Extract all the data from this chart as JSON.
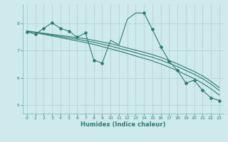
{
  "xlabel": "Humidex (Indice chaleur)",
  "bg_color": "#ceeaed",
  "grid_color": "#aed0d4",
  "line_color": "#2e7d72",
  "xlim": [
    -0.5,
    23.5
  ],
  "ylim": [
    4.7,
    8.7
  ],
  "xticks": [
    0,
    1,
    2,
    3,
    4,
    5,
    6,
    7,
    8,
    9,
    10,
    11,
    12,
    13,
    14,
    15,
    16,
    17,
    18,
    19,
    20,
    21,
    22,
    23
  ],
  "yticks": [
    5,
    6,
    7,
    8
  ],
  "series1_x": [
    0,
    1,
    2,
    3,
    4,
    5,
    6,
    7,
    8,
    9,
    10,
    11,
    12,
    13,
    14,
    15,
    16,
    17,
    18,
    19,
    20,
    21,
    22,
    23
  ],
  "series1_y": [
    7.7,
    7.6,
    7.82,
    8.02,
    7.82,
    7.72,
    7.5,
    7.65,
    6.65,
    6.55,
    7.38,
    7.22,
    8.15,
    8.38,
    8.38,
    7.78,
    7.15,
    6.62,
    6.28,
    5.82,
    5.92,
    5.55,
    5.28,
    5.18
  ],
  "series1_markers_x": [
    0,
    1,
    2,
    3,
    4,
    5,
    6,
    7,
    8,
    9,
    14,
    15,
    16,
    17,
    18,
    19,
    20,
    21,
    22,
    23
  ],
  "series1_markers_y": [
    7.7,
    7.6,
    7.82,
    8.02,
    7.82,
    7.72,
    7.5,
    7.65,
    6.65,
    6.55,
    8.38,
    7.78,
    7.15,
    6.62,
    6.28,
    5.82,
    5.92,
    5.55,
    5.28,
    5.18
  ],
  "series2_x": [
    0,
    1,
    2,
    3,
    4,
    5,
    6,
    7,
    8,
    9,
    10,
    11,
    12,
    13,
    14,
    15,
    16,
    17,
    18,
    19,
    20,
    21,
    22,
    23
  ],
  "series2_y": [
    7.72,
    7.68,
    7.64,
    7.6,
    7.56,
    7.52,
    7.48,
    7.44,
    7.38,
    7.32,
    7.26,
    7.18,
    7.1,
    7.02,
    6.94,
    6.86,
    6.76,
    6.64,
    6.52,
    6.38,
    6.24,
    6.08,
    5.88,
    5.65
  ],
  "series3_x": [
    0,
    1,
    2,
    3,
    4,
    5,
    6,
    7,
    8,
    9,
    10,
    11,
    12,
    13,
    14,
    15,
    16,
    17,
    18,
    19,
    20,
    21,
    22,
    23
  ],
  "series3_y": [
    7.72,
    7.67,
    7.62,
    7.57,
    7.52,
    7.47,
    7.42,
    7.37,
    7.31,
    7.24,
    7.17,
    7.09,
    7.01,
    6.93,
    6.84,
    6.76,
    6.66,
    6.54,
    6.42,
    6.28,
    6.14,
    5.98,
    5.78,
    5.55
  ],
  "series4_x": [
    0,
    1,
    2,
    3,
    4,
    5,
    6,
    7,
    8,
    9,
    10,
    11,
    12,
    13,
    14,
    15,
    16,
    17,
    18,
    19,
    20,
    21,
    22,
    23
  ],
  "series4_y": [
    7.72,
    7.66,
    7.6,
    7.54,
    7.48,
    7.42,
    7.36,
    7.3,
    7.23,
    7.15,
    7.07,
    6.99,
    6.9,
    6.81,
    6.72,
    6.63,
    6.52,
    6.4,
    6.27,
    6.12,
    5.98,
    5.81,
    5.61,
    5.38
  ]
}
